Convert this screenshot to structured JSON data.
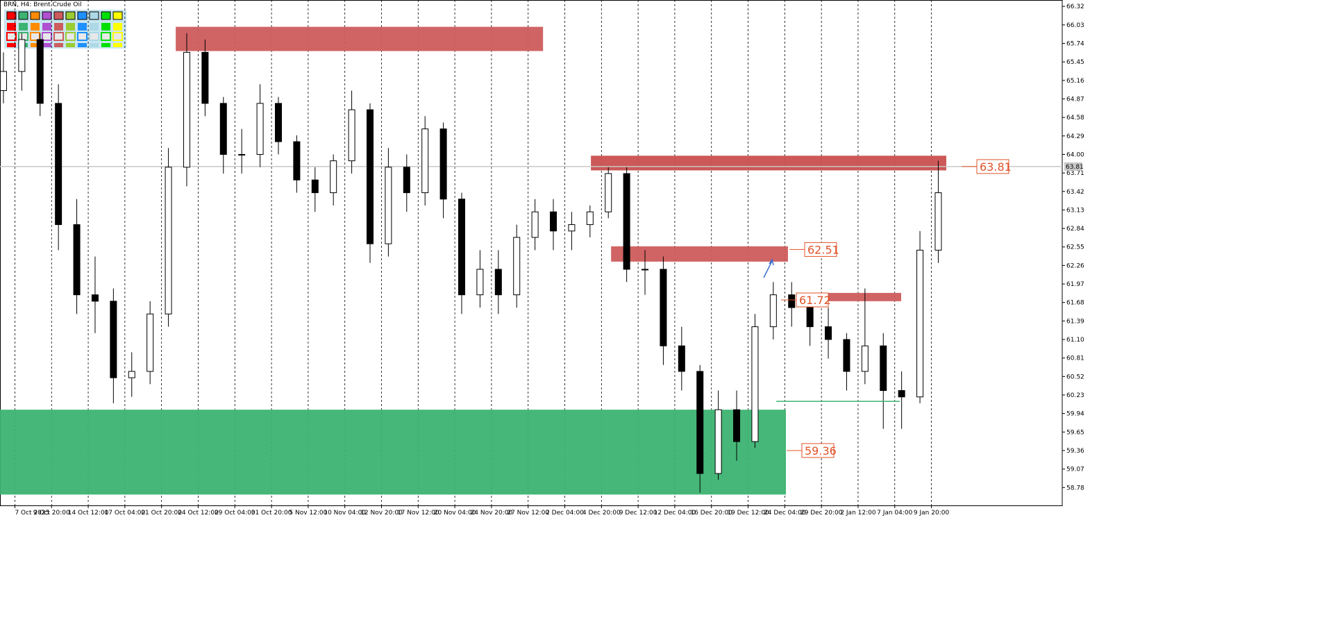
{
  "chart_data": {
    "type": "candlestick",
    "title": "BRN, H4:  Brent Crude Oil",
    "x": [
      0,
      8,
      16,
      24,
      32,
      40,
      48,
      56,
      64,
      72,
      80,
      88,
      96,
      104,
      112,
      120,
      128,
      136,
      144,
      152,
      160,
      168,
      176,
      184,
      192,
      200,
      208,
      216,
      224,
      232,
      240,
      248,
      256,
      264,
      272,
      280,
      288,
      296,
      304,
      312,
      320,
      328,
      336,
      344,
      352,
      360,
      368,
      376,
      384,
      392,
      400,
      408
    ],
    "open": [
      65.0,
      65.3,
      65.8,
      64.8,
      62.9,
      61.8,
      61.7,
      60.5,
      60.6,
      61.5,
      63.8,
      65.6,
      64.8,
      64.0,
      64.0,
      64.8,
      64.2,
      63.6,
      63.4,
      63.9,
      64.7,
      62.6,
      63.8,
      63.4,
      64.4,
      63.3,
      61.8,
      62.2,
      61.8,
      62.7,
      63.1,
      62.8,
      62.9,
      63.1,
      63.7,
      62.2,
      62.2,
      61.0,
      60.6,
      59.0,
      60.0,
      59.5,
      61.3,
      61.8,
      61.6,
      61.3,
      61.1,
      60.6,
      61.0,
      60.3,
      60.2,
      62.5
    ],
    "high": [
      65.6,
      65.9,
      65.9,
      65.1,
      63.3,
      62.4,
      61.9,
      60.9,
      61.7,
      64.1,
      65.9,
      65.8,
      64.9,
      64.4,
      65.1,
      64.9,
      64.3,
      63.8,
      64.0,
      65.0,
      64.8,
      64.1,
      64.0,
      64.6,
      64.5,
      63.4,
      62.5,
      62.5,
      62.9,
      63.3,
      63.3,
      63.1,
      63.2,
      63.8,
      63.8,
      62.5,
      62.4,
      61.3,
      60.7,
      60.3,
      60.3,
      61.5,
      62.0,
      62.0,
      61.8,
      61.6,
      61.2,
      61.9,
      61.2,
      60.6,
      62.8,
      63.9
    ],
    "low": [
      64.8,
      65.0,
      64.6,
      62.5,
      61.5,
      61.2,
      60.1,
      60.2,
      60.4,
      61.3,
      63.5,
      64.6,
      63.7,
      63.7,
      63.8,
      64.0,
      63.4,
      63.1,
      63.2,
      63.7,
      62.3,
      62.4,
      63.1,
      63.2,
      63.0,
      61.5,
      61.6,
      61.5,
      61.6,
      62.5,
      62.5,
      62.5,
      62.7,
      63.0,
      62.0,
      61.8,
      60.7,
      60.3,
      58.7,
      58.9,
      59.2,
      59.4,
      61.1,
      61.3,
      61.0,
      60.8,
      60.3,
      60.4,
      59.7,
      59.7,
      60.1,
      62.3
    ],
    "close": [
      65.3,
      65.8,
      64.8,
      62.9,
      61.8,
      61.7,
      60.5,
      60.6,
      61.5,
      63.8,
      65.6,
      64.8,
      64.0,
      64.0,
      64.8,
      64.2,
      63.6,
      63.4,
      63.9,
      64.7,
      62.6,
      63.8,
      63.4,
      64.4,
      63.3,
      61.8,
      62.2,
      61.8,
      62.7,
      63.1,
      62.8,
      62.9,
      63.1,
      63.7,
      62.2,
      62.2,
      61.0,
      60.6,
      59.0,
      60.0,
      59.5,
      61.3,
      61.8,
      61.6,
      61.3,
      61.1,
      60.6,
      61.0,
      60.3,
      60.2,
      62.5,
      63.4
    ],
    "xlim": [
      -1.5,
      462.1
    ],
    "xticks": [
      {
        "value": 5,
        "label": "7 Oct 2025"
      },
      {
        "value": 21,
        "label": "9 Oct 20:00"
      },
      {
        "value": 37,
        "label": "14 Oct 12:00"
      },
      {
        "value": 53,
        "label": "17 Oct 04:00"
      },
      {
        "value": 69,
        "label": "21 Oct 20:00"
      },
      {
        "value": 85,
        "label": "24 Oct 12:00"
      },
      {
        "value": 101,
        "label": "29 Oct 04:00"
      },
      {
        "value": 117,
        "label": "31 Oct 20:00"
      },
      {
        "value": 133,
        "label": "5 Nov 12:00"
      },
      {
        "value": 149,
        "label": "10 Nov 04:00"
      },
      {
        "value": 165,
        "label": "12 Nov 20:00"
      },
      {
        "value": 181,
        "label": "17 Nov 12:00"
      },
      {
        "value": 197,
        "label": "20 Nov 04:00"
      },
      {
        "value": 213,
        "label": "24 Nov 20:00"
      },
      {
        "value": 229,
        "label": "27 Nov 12:00"
      },
      {
        "value": 245,
        "label": "2 Dec 04:00"
      },
      {
        "value": 261,
        "label": "4 Dec 20:00"
      },
      {
        "value": 277,
        "label": "9 Dec 12:00"
      },
      {
        "value": 293,
        "label": "12 Dec 04:00"
      },
      {
        "value": 309,
        "label": "16 Dec 20:00"
      },
      {
        "value": 325,
        "label": "19 Dec 12:00"
      },
      {
        "value": 341,
        "label": "24 Dec 04:00"
      },
      {
        "value": 357,
        "label": "29 Dec 20:00"
      },
      {
        "value": 373,
        "label": "2 Jan 12:00"
      },
      {
        "value": 389,
        "label": "7 Jan 04:00"
      },
      {
        "value": 405,
        "label": "9 Jan 20:00"
      }
    ],
    "ylim": [
      58.5,
      66.42
    ],
    "yticks": [
      66.32,
      66.03,
      65.74,
      65.45,
      65.16,
      64.87,
      64.58,
      64.29,
      {
        "value": 64,
        "label": "64.00"
      },
      63.71,
      63.42,
      63.13,
      62.84,
      62.55,
      62.26,
      61.97,
      61.68,
      61.39,
      {
        "value": 61.1,
        "label": "61.10"
      },
      60.81,
      60.52,
      60.23,
      59.94,
      59.65,
      59.36,
      59.07,
      58.78
    ],
    "zones": [
      {
        "x": [
          75.2,
          235.5
        ],
        "y": [
          65.62,
          66.0
        ],
        "color": "#cd5c5c"
      },
      {
        "x": [
          256.4,
          411.5
        ],
        "y": [
          63.75,
          63.98
        ],
        "color": "#c94f4f"
      },
      {
        "x": [
          265.2,
          342.4
        ],
        "y": [
          62.32,
          62.56
        ],
        "color": "#cd5c5c"
      },
      {
        "x": [
          353,
          391.8
        ],
        "y": [
          61.7,
          61.83
        ],
        "color": "#cd5c5c"
      },
      {
        "x": [
          -1.5,
          341.5
        ],
        "y": [
          58.67,
          60.0
        ],
        "color": "#3cb371"
      }
    ],
    "support_line": {
      "x": [
        337.3,
        391.2
      ],
      "y": 60.13,
      "color": "#3cb371"
    },
    "level_labels": [
      63.81,
      62.51,
      61.72,
      59.36
    ],
    "current_price": 63.81
  }
}
